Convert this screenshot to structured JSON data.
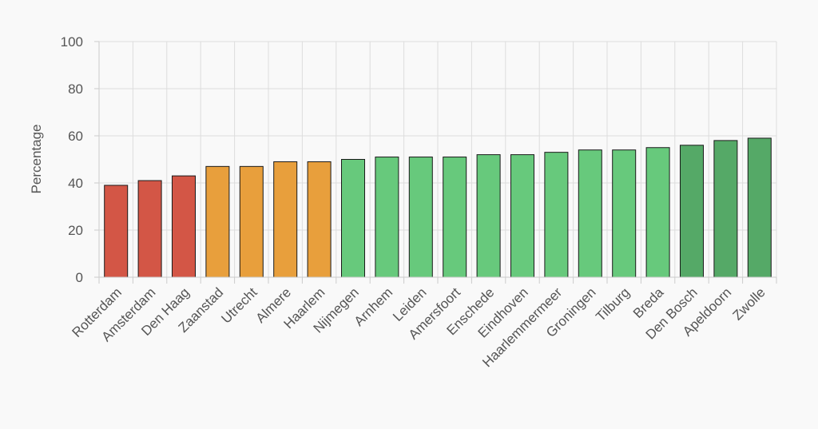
{
  "chart_data": {
    "type": "bar",
    "ylabel": "Percentage",
    "ylim": [
      0,
      100
    ],
    "yticks": [
      0,
      20,
      40,
      60,
      80,
      100
    ],
    "grid": true,
    "categories": [
      "Rotterdam",
      "Amsterdam",
      "Den Haag",
      "Zaanstad",
      "Utrecht",
      "Almere",
      "Haarlem",
      "Nijmegen",
      "Arnhem",
      "Leiden",
      "Amersfoort",
      "Enschede",
      "Eindhoven",
      "Haarlemmermeer",
      "Groningen",
      "Tilburg",
      "Breda",
      "Den Bosch",
      "Apeldoorn",
      "Zwolle"
    ],
    "values": [
      39,
      41,
      43,
      47,
      47,
      49,
      49,
      50,
      51,
      51,
      51,
      52,
      52,
      53,
      54,
      54,
      55,
      56,
      58,
      59
    ],
    "colors": {
      "red": "#d35646",
      "orange": "#e89f3c",
      "green": "#67c97c",
      "dark_green": "#55a967",
      "grid": "#dddddd",
      "axis": "#cccccc",
      "bar_stroke": "#1a1a1a"
    },
    "color_groups": [
      "red",
      "red",
      "red",
      "orange",
      "orange",
      "orange",
      "orange",
      "green",
      "green",
      "green",
      "green",
      "green",
      "green",
      "green",
      "green",
      "green",
      "green",
      "dark_green",
      "dark_green",
      "dark_green"
    ]
  }
}
